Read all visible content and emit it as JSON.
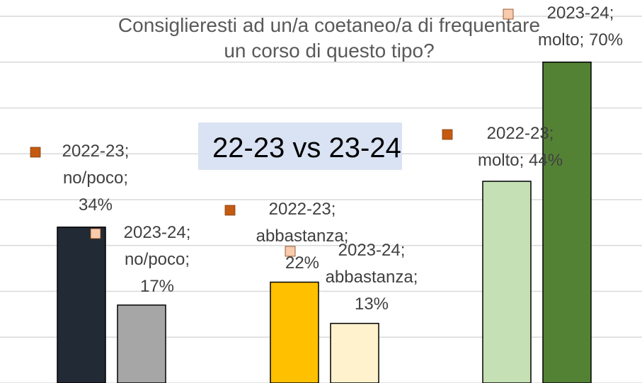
{
  "chart_data": {
    "type": "bar",
    "title": "Consiglieresti ad un/a coetaneo/a di frequentare un corso di questo tipo?",
    "annotation": "22-23 vs 23-24",
    "values": [
      34,
      17,
      22,
      13,
      44,
      70
    ],
    "value_labels": [
      "2022-23; no/poco; 34%",
      "2023-24; no/poco; 17%",
      "2022-23; abbastanza; 22%",
      "2023-24; abbastanza; 13%",
      "2022-23; molto; 44%",
      "2023-24; molto; 70%"
    ],
    "colors": [
      "#222a35",
      "#a6a6a6",
      "#ffc000",
      "#fff2cc",
      "#c5e0b4",
      "#548235"
    ],
    "marker_colors": [
      "#c55a11",
      "#f8cbad",
      "#c55a11",
      "#f8cbad",
      "#c55a11",
      "#f8cbad"
    ],
    "ylim": [
      0,
      80
    ],
    "yticks": [
      0,
      10,
      20,
      30,
      40,
      50,
      60,
      70,
      80
    ],
    "grid": true
  }
}
